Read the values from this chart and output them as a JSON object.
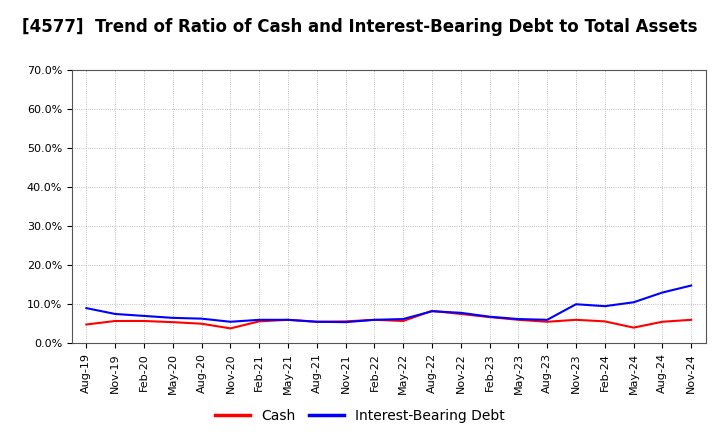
{
  "title": "[4577]  Trend of Ratio of Cash and Interest-Bearing Debt to Total Assets",
  "x_labels": [
    "Aug-19",
    "Nov-19",
    "Feb-20",
    "May-20",
    "Aug-20",
    "Nov-20",
    "Feb-21",
    "May-21",
    "Aug-21",
    "Nov-21",
    "Feb-22",
    "May-22",
    "Aug-22",
    "Nov-22",
    "Feb-23",
    "May-23",
    "Aug-23",
    "Nov-23",
    "Feb-24",
    "May-24",
    "Aug-24",
    "Nov-24"
  ],
  "cash": [
    0.048,
    0.057,
    0.057,
    0.054,
    0.05,
    0.038,
    0.056,
    0.06,
    0.055,
    0.056,
    0.06,
    0.057,
    0.083,
    0.075,
    0.067,
    0.06,
    0.055,
    0.06,
    0.056,
    0.04,
    0.055,
    0.06
  ],
  "ibd": [
    0.09,
    0.075,
    0.07,
    0.065,
    0.063,
    0.055,
    0.06,
    0.06,
    0.055,
    0.054,
    0.06,
    0.062,
    0.082,
    0.078,
    0.068,
    0.062,
    0.06,
    0.1,
    0.095,
    0.105,
    0.13,
    0.148
  ],
  "cash_color": "#ff0000",
  "ibd_color": "#0000ff",
  "ylim": [
    0,
    0.7
  ],
  "yticks": [
    0.0,
    0.1,
    0.2,
    0.3,
    0.4,
    0.5,
    0.6,
    0.7
  ],
  "legend_cash": "Cash",
  "legend_ibd": "Interest-Bearing Debt",
  "background_color": "#ffffff",
  "grid_color": "#aaaaaa",
  "title_fontsize": 12,
  "tick_fontsize": 8,
  "legend_fontsize": 10,
  "line_width": 1.5
}
